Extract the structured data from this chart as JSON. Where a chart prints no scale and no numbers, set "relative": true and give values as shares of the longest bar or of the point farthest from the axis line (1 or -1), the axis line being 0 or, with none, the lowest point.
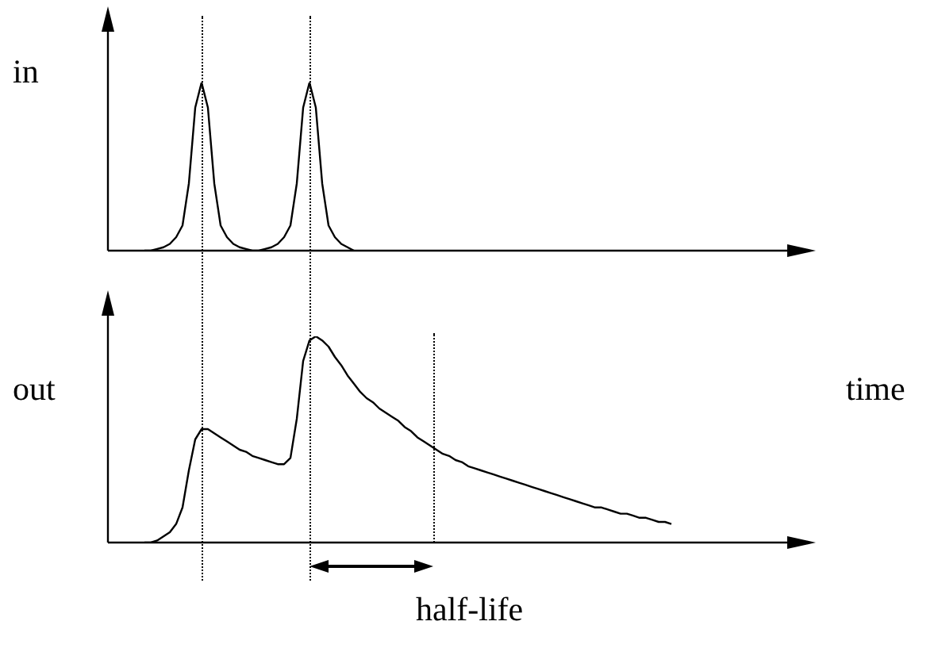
{
  "chart_data": [
    {
      "type": "line",
      "ylabel": "in",
      "relative": true,
      "legend": false,
      "marker": "none",
      "line_style": "solid",
      "categories": [
        null,
        null,
        null,
        null,
        null,
        null,
        null,
        null,
        null,
        null,
        null,
        null,
        null,
        null,
        null,
        null,
        null,
        null,
        null,
        null,
        null,
        null,
        null,
        null,
        null,
        null,
        null,
        null,
        null,
        null,
        null,
        null,
        null,
        null
      ],
      "series": [
        {
          "color": "#000000",
          "values": [
            0,
            0,
            0.01,
            0.02,
            0.04,
            0.08,
            0.15,
            0.4,
            0.85,
            1,
            0.85,
            0.4,
            0.15,
            0.08,
            0.04,
            0.02,
            0.01,
            0,
            0,
            0.01,
            0.02,
            0.04,
            0.08,
            0.15,
            0.4,
            0.85,
            1,
            0.85,
            0.4,
            0.15,
            0.08,
            0.04,
            0.02,
            0
          ]
        }
      ]
    },
    {
      "type": "line",
      "ylabel": "out",
      "xlabel": "time",
      "relative": true,
      "legend": false,
      "marker": "none",
      "line_style": "solid",
      "annotations": [
        "half-life"
      ],
      "categories": [
        null,
        null,
        null,
        null,
        null,
        null,
        null,
        null,
        null,
        null,
        null,
        null,
        null,
        null,
        null,
        null,
        null,
        null,
        null,
        null,
        null,
        null,
        null,
        null,
        null,
        null,
        null,
        null,
        null,
        null,
        null,
        null,
        null,
        null,
        null,
        null,
        null,
        null,
        null,
        null,
        null,
        null,
        null,
        null,
        null,
        null,
        null,
        null,
        null,
        null,
        null,
        null,
        null,
        null,
        null,
        null,
        null,
        null,
        null,
        null,
        null,
        null,
        null,
        null,
        null,
        null,
        null,
        null,
        null,
        null,
        null,
        null,
        null,
        null,
        null,
        null,
        null,
        null,
        null,
        null,
        null,
        null,
        null,
        null
      ],
      "series": [
        {
          "color": "#000000",
          "values": [
            0,
            0,
            0.01,
            0.03,
            0.05,
            0.09,
            0.17,
            0.35,
            0.5,
            0.55,
            0.55,
            0.53,
            0.51,
            0.49,
            0.47,
            0.45,
            0.44,
            0.42,
            0.41,
            0.4,
            0.39,
            0.38,
            0.38,
            0.41,
            0.6,
            0.88,
            0.98,
            1,
            0.98,
            0.95,
            0.9,
            0.86,
            0.81,
            0.77,
            0.73,
            0.7,
            0.68,
            0.65,
            0.63,
            0.61,
            0.59,
            0.56,
            0.54,
            0.51,
            0.49,
            0.47,
            0.45,
            0.43,
            0.42,
            0.4,
            0.39,
            0.37,
            0.36,
            0.35,
            0.34,
            0.33,
            0.32,
            0.31,
            0.3,
            0.29,
            0.28,
            0.27,
            0.26,
            0.25,
            0.24,
            0.23,
            0.22,
            0.21,
            0.2,
            0.19,
            0.18,
            0.17,
            0.17,
            0.16,
            0.15,
            0.14,
            0.14,
            0.13,
            0.12,
            0.12,
            0.11,
            0.1,
            0.1,
            0.09
          ]
        }
      ]
    }
  ]
}
